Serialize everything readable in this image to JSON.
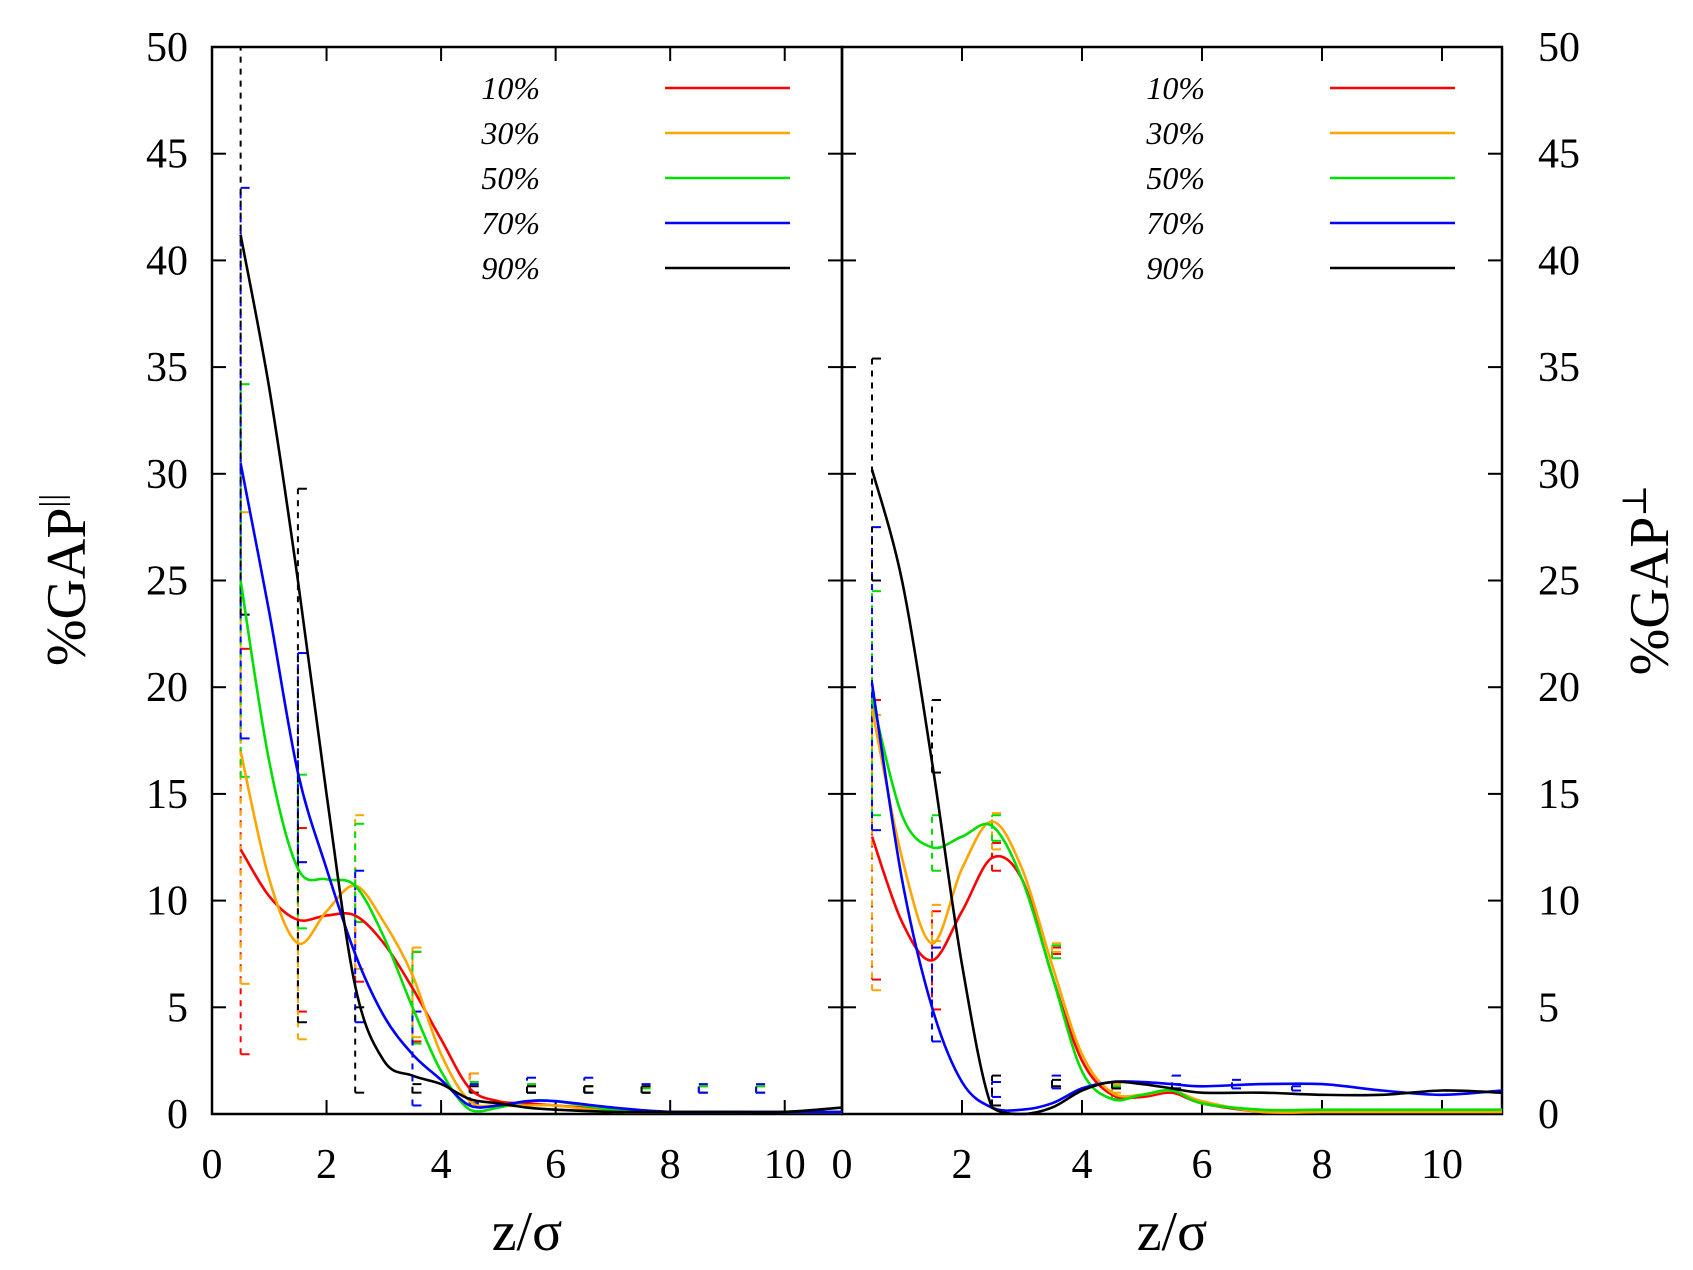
{
  "chart_data": [
    {
      "type": "line",
      "panel": "left",
      "title": "",
      "xlabel": "z/σ",
      "ylabel": "%GAP",
      "ylabel_sup": "||",
      "xlim": [
        0,
        11
      ],
      "ylim": [
        0,
        50
      ],
      "xticks": [
        "0",
        "2",
        "4",
        "6",
        "8",
        "10"
      ],
      "xtick_values": [
        0,
        2,
        4,
        6,
        8,
        10
      ],
      "yticks": [
        "0",
        "5",
        "10",
        "15",
        "20",
        "25",
        "30",
        "35",
        "40",
        "45",
        "50"
      ],
      "ytick_values": [
        0,
        5,
        10,
        15,
        20,
        25,
        30,
        35,
        40,
        45,
        50
      ],
      "legend": "top-right",
      "series": [
        {
          "name": "10%",
          "color": "#ff0000",
          "x": [
            0.5,
            1.0,
            1.5,
            2.0,
            2.5,
            3.0,
            3.5,
            4.0,
            4.5,
            5.0,
            5.5,
            6.0,
            7.0,
            8.0,
            9.0,
            10.0,
            11.0
          ],
          "y": [
            12.4,
            10.2,
            9.1,
            9.3,
            9.3,
            8.0,
            5.9,
            3.5,
            1.2,
            0.6,
            0.5,
            0.4,
            0.2,
            0.1,
            0.1,
            0.1,
            0.1
          ],
          "err_y": [
            2.8,
            4.8,
            6.2,
            3.4,
            0.5,
            1.0,
            1.0,
            1.0,
            1.0,
            1.0
          ],
          "err_lo": [
            2.8,
            4.8,
            6.2,
            3.4,
            0.5,
            1.0,
            1.0,
            1.0,
            1.0,
            1.0
          ],
          "err_hi": [
            21.8,
            13.4,
            9.0,
            7.6,
            1.9,
            1.3,
            1.3,
            1.3,
            1.3,
            1.3
          ]
        },
        {
          "name": "30%",
          "color": "#ffa500",
          "x": [
            0.5,
            1.0,
            1.5,
            2.0,
            2.5,
            3.0,
            3.5,
            4.0,
            4.5,
            5.0,
            5.5,
            6.0,
            7.0,
            8.0,
            9.0,
            10.0,
            11.0
          ],
          "y": [
            17.0,
            11.0,
            8.0,
            9.5,
            10.7,
            9.0,
            6.5,
            2.8,
            0.6,
            0.4,
            0.4,
            0.4,
            0.1,
            0.1,
            0.1,
            0.1,
            0.1
          ],
          "err_lo": [
            6.1,
            3.5,
            6.8,
            3.6,
            1.0,
            1.0,
            1.0,
            1.0,
            1.0,
            1.0
          ],
          "err_hi": [
            28.2,
            11.8,
            14.0,
            7.8,
            1.9,
            1.4,
            1.3,
            1.3,
            1.3,
            1.3
          ]
        },
        {
          "name": "50%",
          "color": "#00e000",
          "x": [
            0.5,
            1.0,
            1.5,
            2.0,
            2.5,
            3.0,
            3.5,
            4.0,
            4.5,
            5.0,
            5.5,
            6.0,
            7.0,
            8.0,
            9.0,
            10.0,
            11.0
          ],
          "y": [
            25.0,
            16.5,
            11.5,
            11.0,
            10.7,
            8.3,
            5.0,
            2.0,
            0.2,
            0.3,
            0.6,
            0.6,
            0.2,
            0.1,
            0.1,
            0.1,
            0.1
          ],
          "err_lo": [
            15.8,
            8.7,
            9.0,
            3.3,
            0.5,
            1.0,
            1.0,
            1.0,
            1.0,
            1.0
          ],
          "err_hi": [
            34.2,
            15.9,
            13.6,
            7.6,
            1.5,
            1.4,
            1.3,
            1.2,
            1.3,
            1.3
          ]
        },
        {
          "name": "70%",
          "color": "#0000ff",
          "x": [
            0.5,
            1.0,
            1.5,
            2.0,
            2.5,
            3.0,
            3.5,
            4.0,
            4.5,
            5.0,
            5.5,
            6.0,
            7.0,
            8.0,
            9.0,
            10.0,
            11.0
          ],
          "y": [
            30.5,
            23.5,
            16.0,
            11.5,
            7.5,
            4.6,
            2.8,
            1.6,
            0.4,
            0.4,
            0.6,
            0.6,
            0.3,
            0.1,
            0.1,
            0.1,
            0.1
          ],
          "err_lo": [
            17.6,
            11.8,
            4.3,
            0.4,
            0.5,
            1.0,
            1.0,
            1.0,
            1.0,
            1.0
          ],
          "err_hi": [
            43.4,
            21.6,
            11.4,
            4.8,
            1.4,
            1.7,
            1.7,
            1.4,
            1.4,
            1.4
          ]
        },
        {
          "name": "90%",
          "color": "#000000",
          "x": [
            0.5,
            1.0,
            1.5,
            2.0,
            2.5,
            3.0,
            3.5,
            4.0,
            4.5,
            5.0,
            5.5,
            6.0,
            7.0,
            8.0,
            9.0,
            10.0,
            11.0
          ],
          "y": [
            41.2,
            34.0,
            25.0,
            15.0,
            6.0,
            2.5,
            1.8,
            1.4,
            0.7,
            0.5,
            0.3,
            0.2,
            0.1,
            0.1,
            0.1,
            0.1,
            0.3
          ],
          "err_lo": [
            23.4,
            4.3,
            1.0,
            1.0,
            1.0,
            1.0,
            1.0,
            1.0
          ],
          "err_hi": [
            50.0,
            29.3,
            5.0,
            1.4,
            1.3,
            1.3,
            1.3,
            1.3
          ]
        }
      ]
    },
    {
      "type": "line",
      "panel": "right",
      "title": "",
      "xlabel": "z/σ",
      "ylabel": "%GAP",
      "ylabel_sup": "⊥",
      "xlim": [
        0,
        11
      ],
      "ylim": [
        0,
        50
      ],
      "xticks": [
        "0",
        "2",
        "4",
        "6",
        "8",
        "10"
      ],
      "xtick_values": [
        0,
        2,
        4,
        6,
        8,
        10
      ],
      "yticks": [
        "0",
        "5",
        "10",
        "15",
        "20",
        "25",
        "30",
        "35",
        "40",
        "45",
        "50"
      ],
      "ytick_values": [
        0,
        5,
        10,
        15,
        20,
        25,
        30,
        35,
        40,
        45,
        50
      ],
      "legend": "top-right",
      "series": [
        {
          "name": "10%",
          "color": "#ff0000",
          "x": [
            0.5,
            1.0,
            1.5,
            2.0,
            2.5,
            3.0,
            3.5,
            4.0,
            4.5,
            5.0,
            5.5,
            6.0,
            7.0,
            8.0,
            9.0,
            10.0,
            11.0
          ],
          "y": [
            13.0,
            9.0,
            7.2,
            9.5,
            12.0,
            11.0,
            6.5,
            2.5,
            0.9,
            0.8,
            1.0,
            0.5,
            0.1,
            0.1,
            0.1,
            0.1,
            0.1
          ],
          "err_lo": [
            6.3,
            4.9,
            11.4,
            7.5,
            1.2,
            1.0
          ],
          "err_hi": [
            19.4,
            9.5,
            12.7,
            7.8,
            1.4,
            1.2
          ]
        },
        {
          "name": "30%",
          "color": "#ffa500",
          "x": [
            0.5,
            1.0,
            1.5,
            2.0,
            2.5,
            3.0,
            3.5,
            4.0,
            4.5,
            5.0,
            5.5,
            6.0,
            7.0,
            8.0,
            9.0,
            10.0,
            11.0
          ],
          "y": [
            19.0,
            12.0,
            8.0,
            11.5,
            13.7,
            11.5,
            7.0,
            2.8,
            1.0,
            0.9,
            1.1,
            0.6,
            0.1,
            0.1,
            0.1,
            0.1,
            0.1
          ],
          "err_lo": [
            5.8,
            8.1,
            12.4,
            7.6,
            1.0,
            1.0
          ],
          "err_hi": [
            18.7,
            9.8,
            14.1,
            8.0,
            1.4,
            1.2
          ]
        },
        {
          "name": "50%",
          "color": "#00e000",
          "x": [
            0.5,
            1.0,
            1.5,
            2.0,
            2.5,
            3.0,
            3.5,
            4.0,
            4.5,
            5.0,
            5.5,
            6.0,
            7.0,
            8.0,
            9.0,
            10.0,
            11.0
          ],
          "y": [
            19.5,
            14.0,
            12.5,
            13.0,
            13.5,
            11.0,
            6.5,
            2.0,
            0.7,
            0.9,
            1.1,
            0.5,
            0.2,
            0.2,
            0.2,
            0.2,
            0.2
          ],
          "err_lo": [
            14.0,
            11.4,
            12.8,
            7.3,
            0.7,
            1.0
          ],
          "err_hi": [
            24.5,
            14.0,
            14.0,
            7.9,
            1.3,
            1.2
          ]
        },
        {
          "name": "70%",
          "color": "#0000ff",
          "x": [
            0.5,
            1.0,
            1.5,
            2.0,
            2.5,
            3.0,
            3.5,
            4.0,
            4.5,
            5.0,
            5.5,
            6.0,
            7.0,
            8.0,
            9.0,
            10.0,
            11.0
          ],
          "y": [
            20.2,
            11.0,
            5.0,
            1.5,
            0.3,
            0.2,
            0.5,
            1.2,
            1.5,
            1.5,
            1.4,
            1.3,
            1.4,
            1.4,
            1.1,
            0.9,
            1.1
          ],
          "err_lo": [
            13.3,
            3.4,
            0.8,
            1.2,
            1.2,
            1.2,
            1.2,
            1.1
          ],
          "err_hi": [
            27.5,
            7.8,
            1.5,
            1.8,
            1.5,
            1.8,
            1.6,
            1.3
          ]
        },
        {
          "name": "90%",
          "color": "#000000",
          "x": [
            0.5,
            1.0,
            1.5,
            2.0,
            2.5,
            3.0,
            3.5,
            4.0,
            4.5,
            5.0,
            5.5,
            6.0,
            7.0,
            8.0,
            9.0,
            10.0,
            11.0
          ],
          "y": [
            30.2,
            25.0,
            16.5,
            7.0,
            0.3,
            0.0,
            0.3,
            1.1,
            1.5,
            1.4,
            1.2,
            1.0,
            1.0,
            0.9,
            0.9,
            1.1,
            1.0
          ],
          "err_lo": [
            25.0,
            16.0,
            0.4,
            1.3,
            1.2,
            1.0
          ],
          "err_hi": [
            35.4,
            19.4,
            1.8,
            1.6,
            1.5,
            1.4
          ]
        }
      ]
    }
  ]
}
